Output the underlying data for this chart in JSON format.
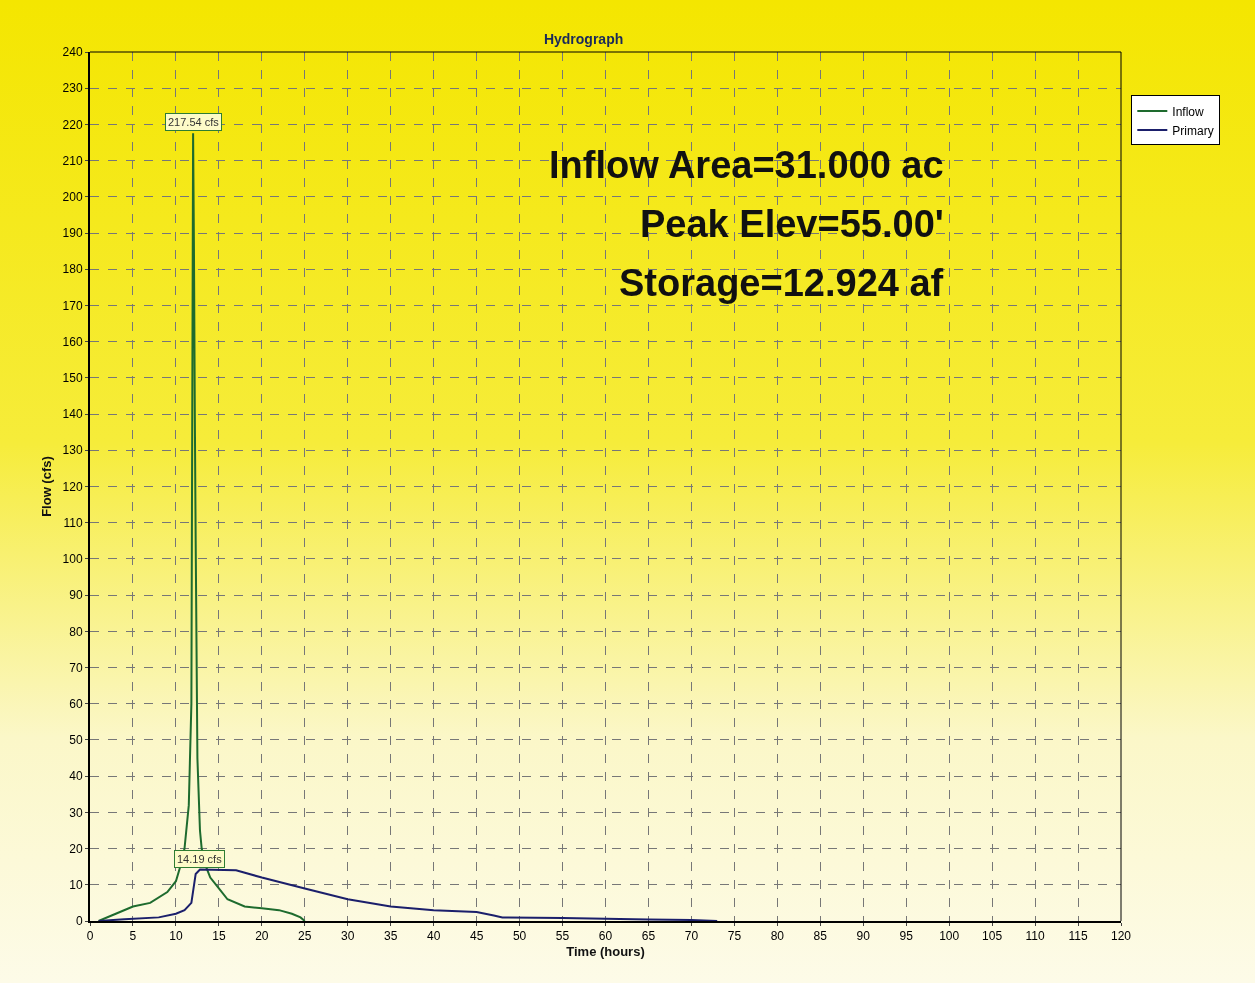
{
  "chart_data": {
    "type": "line",
    "title": "Hydrograph",
    "xlabel": "Time (hours)",
    "ylabel": "Flow (cfs)",
    "xlim": [
      0,
      120
    ],
    "xticks": [
      0,
      5,
      10,
      15,
      20,
      25,
      30,
      35,
      40,
      45,
      50,
      55,
      60,
      65,
      70,
      75,
      80,
      85,
      90,
      95,
      100,
      105,
      110,
      115,
      120
    ],
    "ylim": [
      0,
      240
    ],
    "yticks": [
      0,
      10,
      20,
      30,
      40,
      50,
      60,
      70,
      80,
      90,
      100,
      110,
      120,
      130,
      140,
      150,
      160,
      170,
      180,
      190,
      200,
      210,
      220,
      230,
      240
    ],
    "grid": true,
    "legend": "top right",
    "marker": "none",
    "line_style": "solid",
    "series": [
      {
        "name": "Inflow",
        "color": "#1e6b2e",
        "x": [
          1,
          3,
          5,
          7,
          9,
          10,
          10.5,
          11,
          11.5,
          11.8,
          12,
          12.1,
          12.2,
          12.3,
          12.5,
          12.8,
          13,
          13.5,
          14,
          15,
          16,
          18,
          20,
          22,
          23.5,
          24.5,
          25
        ],
        "values": [
          0,
          2,
          4,
          5,
          8,
          11,
          15,
          20,
          32,
          60,
          217.54,
          185,
          140,
          105,
          45,
          25,
          20,
          15,
          12,
          9,
          6,
          4,
          3.5,
          3,
          2,
          1,
          0
        ]
      },
      {
        "name": "Primary",
        "color": "#1b1f6b",
        "x": [
          1,
          4,
          8,
          10,
          11,
          11.8,
          12.3,
          12.8,
          17,
          20,
          25,
          30,
          35,
          40,
          45,
          47,
          48,
          55,
          60,
          65,
          70,
          73
        ],
        "values": [
          0,
          0.5,
          1,
          2,
          3,
          5,
          13,
          14.19,
          14,
          12,
          9,
          6,
          4,
          3,
          2.5,
          1.5,
          1,
          0.8,
          0.6,
          0.4,
          0.3,
          0
        ]
      }
    ],
    "annotations": [
      {
        "text": "217.54 cfs",
        "x": 12,
        "y": 217.54
      },
      {
        "text": "14.19 cfs",
        "x": 12.8,
        "y": 14.19
      },
      "Inflow Area=31.000 ac",
      "Peak Elev=55.00'",
      "Storage=12.924 af"
    ]
  }
}
